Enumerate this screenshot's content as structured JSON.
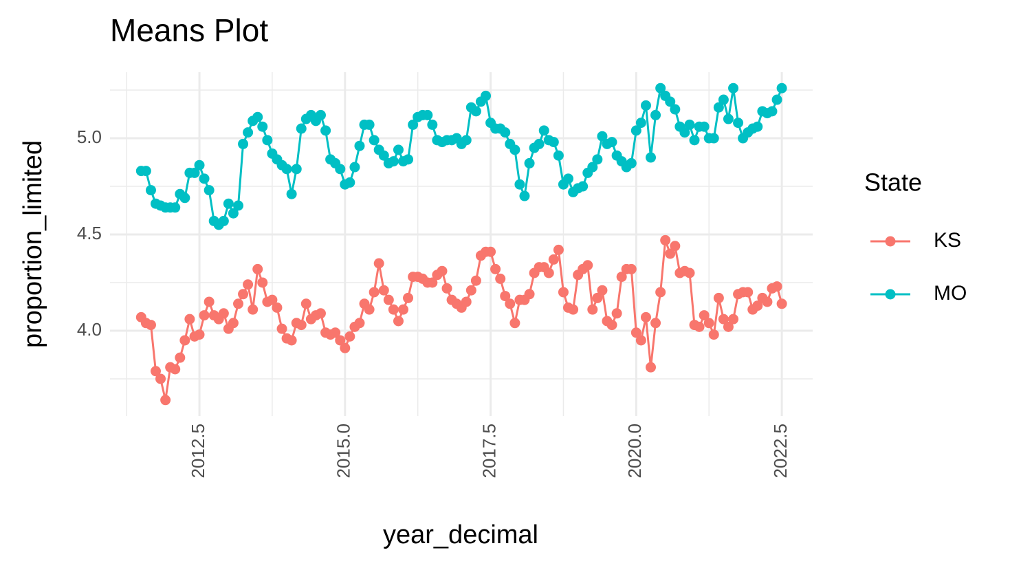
{
  "chart_data": {
    "type": "line",
    "title": "Means Plot",
    "x_label": "year_decimal",
    "y_label": "proportion_limited",
    "legend_title": "State",
    "legend_position": "right",
    "grid": true,
    "xlim": [
      2010.965,
      2023.03
    ],
    "ylim": [
      3.557,
      5.343
    ],
    "xticks": [
      2012.5,
      {
        "value": 2015,
        "label": "2015.0"
      },
      2017.5,
      {
        "value": 2020,
        "label": "2020.0"
      },
      2022.5
    ],
    "yticks": [
      {
        "value": 4,
        "label": "4.0"
      },
      4.5,
      {
        "value": 5,
        "label": "5.0"
      }
    ],
    "x": [
      2011.5,
      2011.583,
      2011.667,
      2011.75,
      2011.833,
      2011.917,
      2012,
      2012.083,
      2012.167,
      2012.25,
      2012.333,
      2012.417,
      2012.5,
      2012.583,
      2012.667,
      2012.75,
      2012.833,
      2012.917,
      2013,
      2013.083,
      2013.167,
      2013.25,
      2013.333,
      2013.417,
      2013.5,
      2013.583,
      2013.667,
      2013.75,
      2013.833,
      2013.917,
      2014,
      2014.083,
      2014.167,
      2014.25,
      2014.333,
      2014.417,
      2014.5,
      2014.583,
      2014.667,
      2014.75,
      2014.833,
      2014.917,
      2015,
      2015.083,
      2015.167,
      2015.25,
      2015.333,
      2015.417,
      2015.5,
      2015.583,
      2015.667,
      2015.75,
      2015.833,
      2015.917,
      2016,
      2016.083,
      2016.167,
      2016.25,
      2016.333,
      2016.417,
      2016.5,
      2016.583,
      2016.667,
      2016.75,
      2016.833,
      2016.917,
      2017,
      2017.083,
      2017.167,
      2017.25,
      2017.333,
      2017.417,
      2017.5,
      2017.583,
      2017.667,
      2017.75,
      2017.833,
      2017.917,
      2018,
      2018.083,
      2018.167,
      2018.25,
      2018.333,
      2018.417,
      2018.5,
      2018.583,
      2018.667,
      2018.75,
      2018.833,
      2018.917,
      2019,
      2019.083,
      2019.167,
      2019.25,
      2019.333,
      2019.417,
      2019.5,
      2019.583,
      2019.667,
      2019.75,
      2019.833,
      2019.917,
      2020,
      2020.083,
      2020.167,
      2020.25,
      2020.333,
      2020.417,
      2020.5,
      2020.583,
      2020.667,
      2020.75,
      2020.833,
      2020.917,
      2021,
      2021.083,
      2021.167,
      2021.25,
      2021.333,
      2021.417,
      2021.5,
      2021.583,
      2021.667,
      2021.75,
      2021.833,
      2021.917,
      2022,
      2022.083,
      2022.167,
      2022.25,
      2022.333,
      2022.417,
      2022.5
    ],
    "series": [
      {
        "name": "KS",
        "color": "#F8766D",
        "values": [
          4.07,
          4.04,
          4.03,
          3.79,
          3.75,
          3.64,
          3.81,
          3.8,
          3.86,
          3.95,
          4.06,
          3.97,
          3.98,
          4.08,
          4.15,
          4.08,
          4.06,
          4.09,
          4.01,
          4.04,
          4.14,
          4.19,
          4.24,
          4.11,
          4.32,
          4.25,
          4.15,
          4.16,
          4.12,
          4.01,
          3.96,
          3.95,
          4.04,
          4.03,
          4.14,
          4.06,
          4.08,
          4.09,
          3.99,
          3.98,
          3.99,
          3.95,
          3.91,
          3.97,
          4.02,
          4.04,
          4.14,
          4.11,
          4.2,
          4.35,
          4.21,
          4.16,
          4.11,
          4.05,
          4.11,
          4.17,
          4.28,
          4.28,
          4.27,
          4.25,
          4.25,
          4.29,
          4.31,
          4.22,
          4.16,
          4.14,
          4.12,
          4.15,
          4.21,
          4.26,
          4.39,
          4.41,
          4.41,
          4.32,
          4.27,
          4.18,
          4.14,
          4.04,
          4.16,
          4.16,
          4.19,
          4.3,
          4.33,
          4.33,
          4.3,
          4.37,
          4.42,
          4.2,
          4.12,
          4.11,
          4.29,
          4.32,
          4.34,
          4.11,
          4.17,
          4.21,
          4.05,
          4.03,
          4.09,
          4.28,
          4.32,
          4.32,
          3.99,
          3.95,
          4.07,
          3.81,
          4.04,
          4.2,
          4.47,
          4.4,
          4.44,
          4.3,
          4.31,
          4.3,
          4.03,
          4.02,
          4.08,
          4.04,
          3.98,
          4.17,
          4.06,
          4.02,
          4.06,
          4.19,
          4.2,
          4.2,
          4.11,
          4.13,
          4.17,
          4.15,
          4.22,
          4.23,
          4.14
        ]
      },
      {
        "name": "MO",
        "color": "#00BFC4",
        "values": [
          4.83,
          4.83,
          4.73,
          4.66,
          4.65,
          4.64,
          4.64,
          4.64,
          4.71,
          4.69,
          4.82,
          4.82,
          4.86,
          4.79,
          4.73,
          4.57,
          4.55,
          4.57,
          4.66,
          4.61,
          4.65,
          4.97,
          5.03,
          5.09,
          5.11,
          5.06,
          4.99,
          4.92,
          4.89,
          4.86,
          4.84,
          4.71,
          4.84,
          5.05,
          5.1,
          5.12,
          5.09,
          5.12,
          5.04,
          4.89,
          4.87,
          4.84,
          4.76,
          4.77,
          4.85,
          4.96,
          5.07,
          5.07,
          4.99,
          4.94,
          4.91,
          4.87,
          4.88,
          4.94,
          4.88,
          4.89,
          5.07,
          5.11,
          5.12,
          5.12,
          5.07,
          4.99,
          4.98,
          4.99,
          4.99,
          5.0,
          4.97,
          4.99,
          5.16,
          5.14,
          5.19,
          5.22,
          5.08,
          5.05,
          5.05,
          5.03,
          4.97,
          4.94,
          4.76,
          4.7,
          4.87,
          4.95,
          4.97,
          5.04,
          4.99,
          4.98,
          4.91,
          4.76,
          4.79,
          4.72,
          4.74,
          4.75,
          4.82,
          4.85,
          4.89,
          5.01,
          4.97,
          4.98,
          4.91,
          4.88,
          4.85,
          4.87,
          5.04,
          5.08,
          5.17,
          4.9,
          5.12,
          5.26,
          5.22,
          5.19,
          5.15,
          5.06,
          5.03,
          5.07,
          4.99,
          5.06,
          5.06,
          5.0,
          5.0,
          5.16,
          5.2,
          5.1,
          5.26,
          5.08,
          5.0,
          5.03,
          5.05,
          5.06,
          5.14,
          5.13,
          5.14,
          5.2,
          5.26
        ]
      }
    ]
  }
}
